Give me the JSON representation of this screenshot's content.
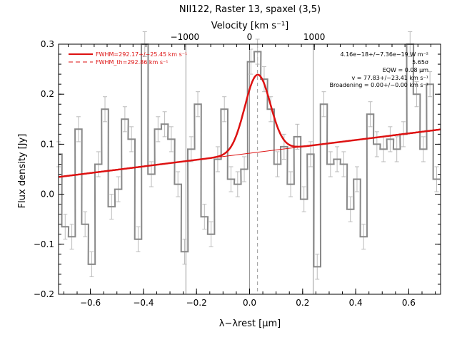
{
  "chart_data": {
    "type": "line",
    "title": "NII122, Raster 13, spaxel (3,5)",
    "xlabel": "λ−λrest [μm]",
    "ylabel": "Flux density [Jy]",
    "top_xlabel": "Velocity [km s⁻¹]",
    "xlim": [
      -0.72,
      0.72
    ],
    "ylim": [
      -0.2,
      0.3
    ],
    "top_xlim": [
      -2950,
      2950
    ],
    "x_ticks": [
      -0.6,
      -0.4,
      -0.2,
      0.0,
      0.2,
      0.4,
      0.6
    ],
    "x_tick_labels": [
      "−0.6",
      "−0.4",
      "−0.2",
      "0.0",
      "0.2",
      "0.4",
      "0.6"
    ],
    "y_ticks": [
      -0.2,
      -0.1,
      0.0,
      0.1,
      0.2,
      0.3
    ],
    "y_tick_labels": [
      "−0.2",
      "−0.1",
      "0.0",
      "0.1",
      "0.2",
      "0.3"
    ],
    "top_ticks": [
      -1000,
      0,
      1000
    ],
    "top_tick_labels": [
      "−1000",
      "0",
      "1000"
    ],
    "vertical_lines_solid": [
      -0.24,
      0.0,
      0.24
    ],
    "vertical_line_dashed": 0.03,
    "spectrum": {
      "name": "spectrum",
      "bin_width": 0.0258,
      "x": [
        -0.72,
        -0.695,
        -0.67,
        -0.645,
        -0.62,
        -0.595,
        -0.57,
        -0.545,
        -0.52,
        -0.495,
        -0.47,
        -0.445,
        -0.42,
        -0.395,
        -0.37,
        -0.345,
        -0.32,
        -0.295,
        -0.27,
        -0.245,
        -0.22,
        -0.195,
        -0.17,
        -0.145,
        -0.12,
        -0.095,
        -0.07,
        -0.045,
        -0.02,
        0.005,
        0.03,
        0.055,
        0.08,
        0.105,
        0.13,
        0.155,
        0.18,
        0.205,
        0.23,
        0.255,
        0.28,
        0.305,
        0.33,
        0.355,
        0.38,
        0.405,
        0.43,
        0.455,
        0.48,
        0.505,
        0.53,
        0.555,
        0.58,
        0.605,
        0.63,
        0.655,
        0.68,
        0.705
      ],
      "y": [
        0.08,
        -0.065,
        -0.085,
        0.13,
        -0.06,
        -0.14,
        0.06,
        0.17,
        -0.025,
        0.01,
        0.15,
        0.11,
        -0.09,
        0.3,
        0.04,
        0.13,
        0.14,
        0.11,
        0.02,
        -0.115,
        0.09,
        0.18,
        -0.045,
        -0.08,
        0.07,
        0.17,
        0.03,
        0.02,
        0.05,
        0.265,
        0.285,
        0.23,
        0.17,
        0.06,
        0.095,
        0.02,
        0.115,
        -0.01,
        0.08,
        -0.145,
        0.18,
        0.06,
        0.07,
        0.06,
        -0.03,
        0.03,
        -0.085,
        0.16,
        0.1,
        0.09,
        0.11,
        0.09,
        0.12,
        0.3,
        0.2,
        0.09,
        0.22,
        0.03
      ],
      "yerr": [
        0.025,
        0.025,
        0.025,
        0.025,
        0.025,
        0.025,
        0.025,
        0.025,
        0.025,
        0.025,
        0.025,
        0.025,
        0.025,
        0.025,
        0.025,
        0.025,
        0.025,
        0.025,
        0.025,
        0.025,
        0.025,
        0.025,
        0.025,
        0.025,
        0.025,
        0.025,
        0.025,
        0.025,
        0.025,
        0.025,
        0.025,
        0.025,
        0.025,
        0.025,
        0.025,
        0.025,
        0.025,
        0.025,
        0.025,
        0.025,
        0.025,
        0.025,
        0.025,
        0.025,
        0.025,
        0.025,
        0.025,
        0.025,
        0.025,
        0.025,
        0.025,
        0.025,
        0.025,
        0.025,
        0.025,
        0.025,
        0.025,
        0.025
      ],
      "color": "#888888"
    },
    "fit": {
      "name": "FWHM=292.17+/−25.45 km s⁻¹",
      "continuum_intercept": 0.082,
      "continuum_slope": 0.066,
      "peak_amplitude": 0.155,
      "center": 0.03,
      "sigma": 0.048,
      "color": "#dd1111"
    },
    "fit_th": {
      "name": "FWHM_th=292.86 km s⁻¹",
      "color": "#dd1111"
    },
    "annotations": [
      "4.16e−18+/−7.36e−19 W m⁻²",
      "5.65σ",
      "EQW = 0.08 μm",
      "v = 77.83+/−23.41 km s⁻¹",
      "Broadening = 0.00+/−0.00 km s⁻¹"
    ],
    "grid": false,
    "legend_position": "top-left"
  }
}
